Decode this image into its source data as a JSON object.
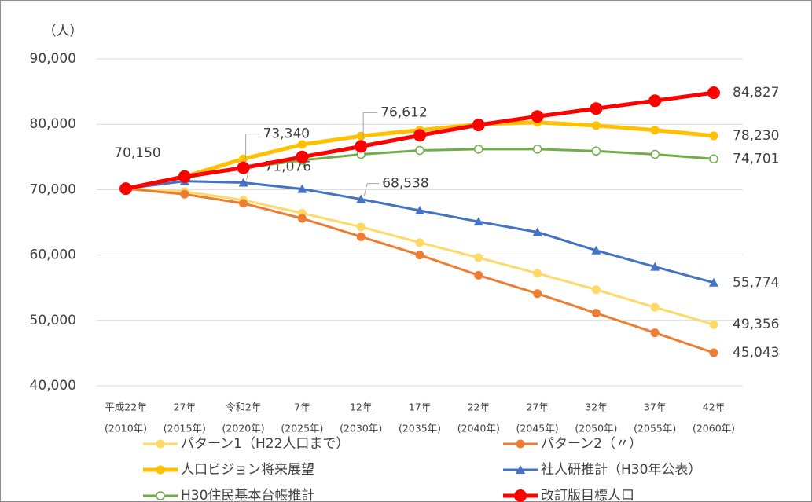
{
  "chart_data": {
    "type": "line",
    "ylabel": "（人）",
    "categories": [
      [
        "平成22年",
        "(2010年)"
      ],
      [
        "27年",
        "(2015年)"
      ],
      [
        "令和2年",
        "(2020年)"
      ],
      [
        "7年",
        "(2025年)"
      ],
      [
        "12年",
        "(2030年)"
      ],
      [
        "17年",
        "(2035年)"
      ],
      [
        "22年",
        "(2040年)"
      ],
      [
        "27年",
        "(2045年)"
      ],
      [
        "32年",
        "(2050年)"
      ],
      [
        "37年",
        "(2055年)"
      ],
      [
        "42年",
        "(2060年)"
      ]
    ],
    "ylim": [
      40000,
      90000
    ],
    "yticks": [
      {
        "value": 40000,
        "label": "40,000"
      },
      {
        "value": 50000,
        "label": "50,000"
      },
      {
        "value": 60000,
        "label": "60,000"
      },
      {
        "value": 70000,
        "label": "70,000"
      },
      {
        "value": 80000,
        "label": "80,000"
      },
      {
        "value": 90000,
        "label": "90,000"
      }
    ],
    "grid": true,
    "series": [
      {
        "name": "パターン1（H22人口まで）",
        "color": "#ffd966",
        "marker": "circle",
        "values": [
          70150,
          69700,
          68400,
          66400,
          64300,
          61900,
          59600,
          57200,
          54700,
          52000,
          49356
        ],
        "value_labels": [
          null,
          null,
          null,
          null,
          null,
          null,
          null,
          null,
          null,
          null,
          "49,356"
        ]
      },
      {
        "name": "パターン2（〃）",
        "color": "#ed7d31",
        "marker": "circle",
        "values": [
          70150,
          69300,
          67900,
          65600,
          62800,
          60000,
          56900,
          54100,
          51100,
          48100,
          45043
        ],
        "value_labels": [
          null,
          null,
          null,
          null,
          null,
          null,
          null,
          null,
          null,
          null,
          "45,043"
        ]
      },
      {
        "name": "人口ビジョン将来展望",
        "color": "#ffc000",
        "marker": "circle",
        "width": 5,
        "values": [
          70150,
          72000,
          74700,
          76900,
          78200,
          79100,
          80000,
          80300,
          79800,
          79100,
          78230
        ],
        "value_labels": [
          null,
          null,
          null,
          null,
          null,
          null,
          null,
          null,
          null,
          null,
          "78,230"
        ]
      },
      {
        "name": "社人研推計（H30年公表）",
        "color": "#4472c4",
        "marker": "triangle",
        "values": [
          70150,
          71300,
          71076,
          70100,
          68538,
          66800,
          65100,
          63500,
          60700,
          58200,
          55774
        ],
        "value_labels": [
          null,
          null,
          "71,076",
          null,
          "68,538",
          null,
          null,
          null,
          null,
          null,
          "55,774"
        ]
      },
      {
        "name": "H30住民基本台帳推計",
        "color": "#70ad47",
        "marker": "open",
        "values": [
          70150,
          71800,
          73300,
          74500,
          75400,
          76000,
          76200,
          76200,
          75900,
          75400,
          74701
        ],
        "value_labels": [
          null,
          null,
          null,
          null,
          null,
          null,
          null,
          null,
          null,
          null,
          "74,701"
        ]
      },
      {
        "name": "改訂版目標人口",
        "color": "#ff0000",
        "marker": "big",
        "width": 5,
        "values": [
          70150,
          72000,
          73340,
          75000,
          76612,
          78300,
          79900,
          81200,
          82400,
          83600,
          84827
        ],
        "value_labels": [
          "70,150",
          null,
          "73,340",
          null,
          "76,612",
          null,
          null,
          null,
          null,
          null,
          "84,827"
        ]
      }
    ]
  }
}
